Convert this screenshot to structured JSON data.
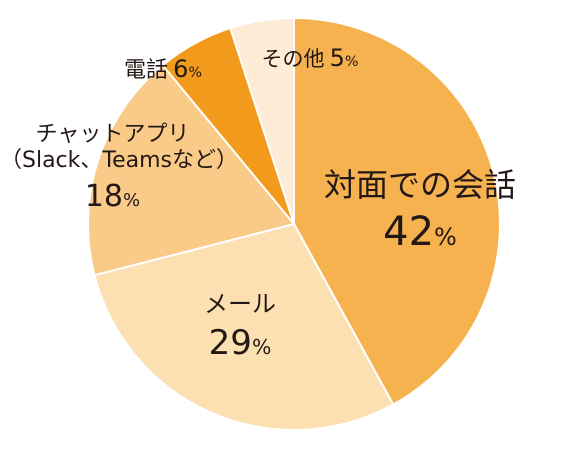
{
  "chart_data": {
    "type": "pie",
    "title": "",
    "slices": [
      {
        "label": "対面での会話",
        "sublabel": "",
        "value": 42,
        "color": "#f5b24f"
      },
      {
        "label": "メール",
        "sublabel": "",
        "value": 29,
        "color": "#fde0b2"
      },
      {
        "label": "チャットアプリ",
        "sublabel": "（Slack、Teamsなど）",
        "value": 18,
        "color": "#f9ca88"
      },
      {
        "label": "電話",
        "sublabel": "",
        "value": 6,
        "color": "#f19a1b"
      },
      {
        "label": "その他",
        "sublabel": "",
        "value": 5,
        "color": "#feecd6"
      }
    ],
    "value_suffix": "%",
    "start_angle": "12 o'clock",
    "direction": "clockwise",
    "legend": "none"
  }
}
